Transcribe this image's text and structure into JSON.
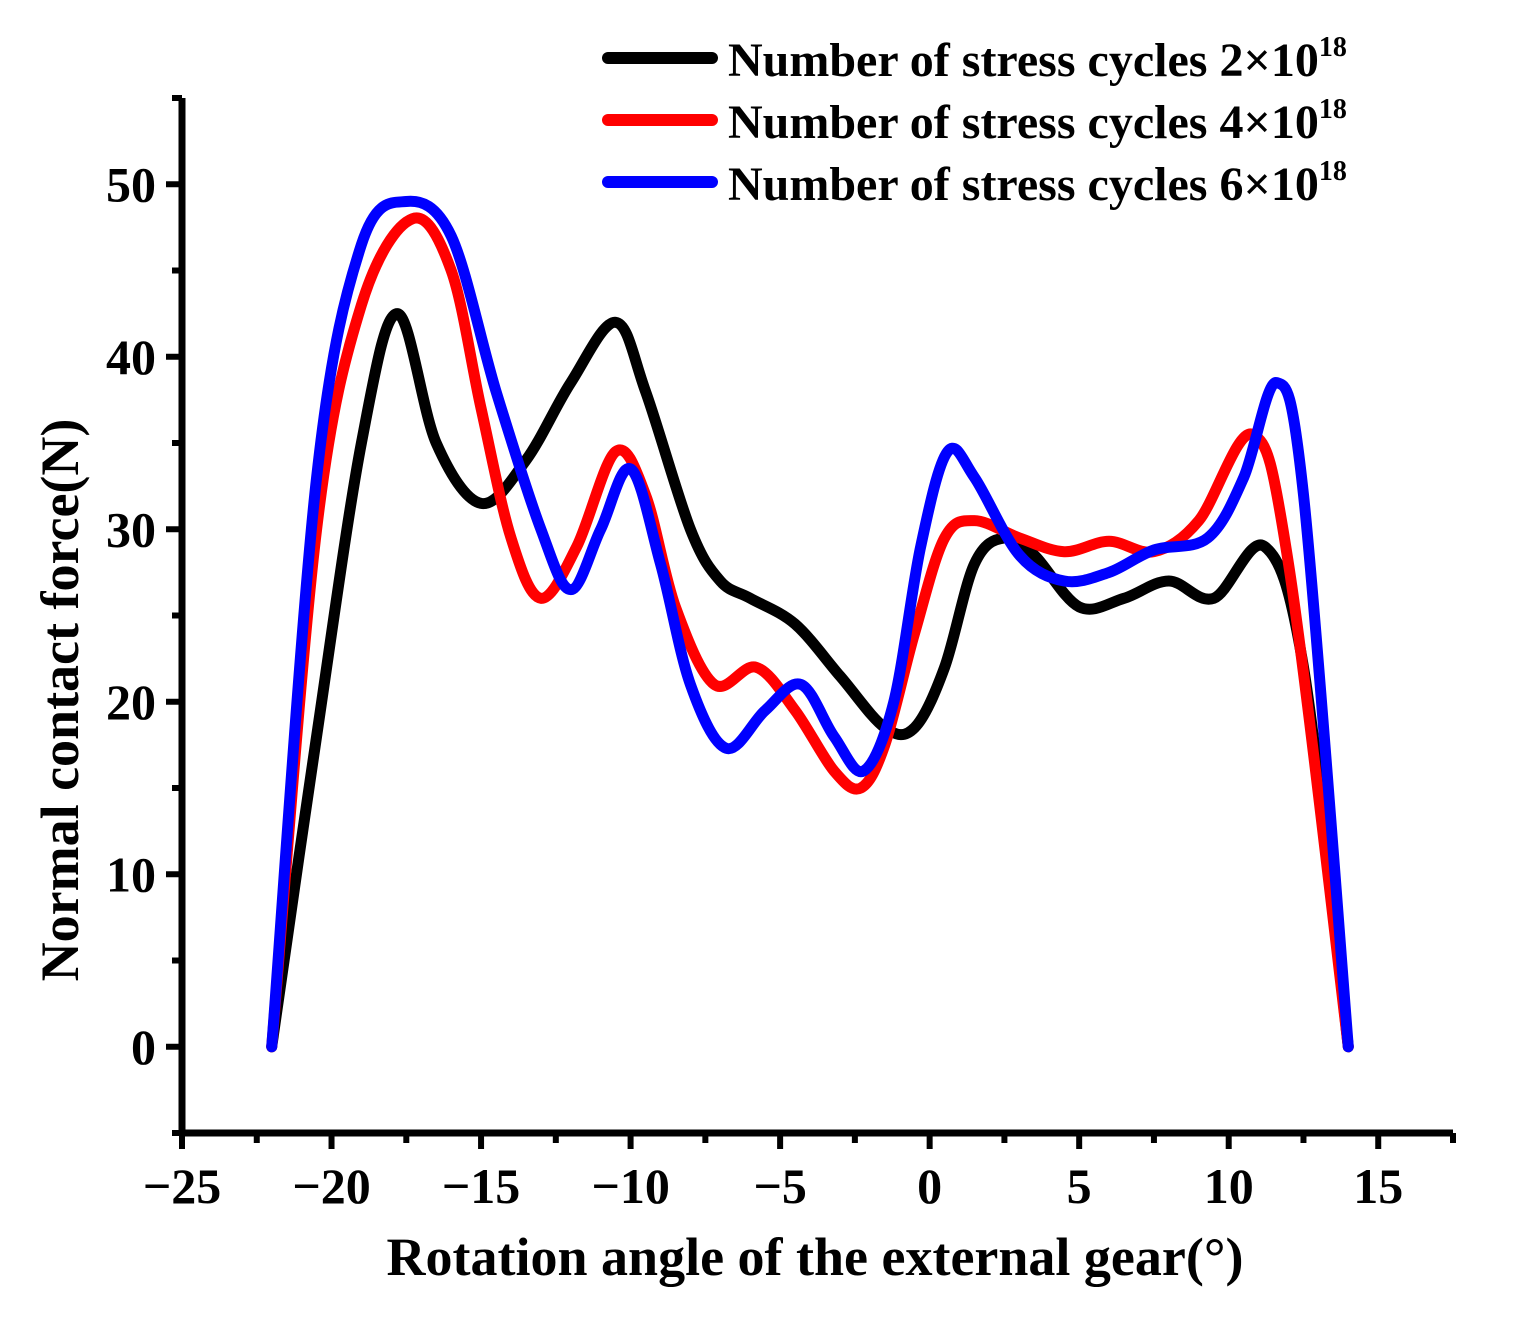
{
  "chart_data": {
    "type": "line",
    "xlabel": "Rotation angle of the external gear(°)",
    "ylabel": "Normal contact force(N)",
    "xlim": [
      -25,
      17.5
    ],
    "ylim": [
      -5,
      55
    ],
    "x_ticks": [
      -25,
      -20,
      -15,
      -10,
      -5,
      0,
      5,
      10,
      15
    ],
    "x_tick_labels": [
      "−25",
      "−20",
      "−15",
      "−10",
      "−5",
      "0",
      "5",
      "10",
      "15"
    ],
    "y_ticks": [
      0,
      10,
      20,
      30,
      40,
      50
    ],
    "y_tick_labels": [
      "0",
      "10",
      "20",
      "30",
      "40",
      "50"
    ],
    "legend_position": "top-right",
    "series": [
      {
        "name": "Number of stress cycles 2×10",
        "superscript": "18",
        "color": "#000000",
        "x": [
          -22,
          -20.5,
          -19,
          -17.8,
          -16.5,
          -15,
          -13.5,
          -12,
          -10.5,
          -9.5,
          -8,
          -7,
          -6,
          -4.5,
          -3,
          -1.5,
          -0.5,
          0.5,
          1.5,
          2.5,
          3.5,
          5,
          6.5,
          8,
          9.5,
          11.2,
          12.5,
          14
        ],
        "y": [
          0,
          18,
          35,
          42.5,
          35,
          31.5,
          34,
          38.5,
          42,
          38,
          30,
          27,
          26,
          24.5,
          21.5,
          18.5,
          18.5,
          22,
          28,
          29.5,
          28.5,
          25.5,
          26,
          27,
          26,
          29,
          22,
          0
        ]
      },
      {
        "name": "Number of stress cycles 4×10",
        "superscript": "18",
        "color": "#ff0000",
        "x": [
          -22,
          -20.5,
          -19,
          -17.3,
          -16,
          -15,
          -14,
          -13,
          -11.8,
          -10.5,
          -9.5,
          -8.5,
          -7.2,
          -5.8,
          -4.5,
          -3.2,
          -2.3,
          -1.5,
          -0.5,
          0.5,
          1.5,
          3,
          4.5,
          6,
          7.5,
          9,
          10.8,
          12,
          14
        ],
        "y": [
          0,
          30,
          43,
          48,
          45,
          37,
          29.5,
          26,
          29,
          34.5,
          32,
          25.5,
          21,
          22,
          19.5,
          16,
          15,
          17.5,
          24,
          29.5,
          30.5,
          29.5,
          28.7,
          29.3,
          28.7,
          30.5,
          35.5,
          28,
          0
        ]
      },
      {
        "name": "Number of stress cycles 6×10",
        "superscript": "18",
        "color": "#0000ff",
        "x": [
          -22,
          -20.5,
          -19,
          -17.5,
          -16,
          -14.5,
          -13,
          -12,
          -11,
          -10,
          -9,
          -8,
          -6.8,
          -5.5,
          -4.3,
          -3.2,
          -2.2,
          -1.2,
          -0.3,
          0.6,
          1.5,
          3,
          4.5,
          6,
          7.5,
          9.3,
          10.5,
          11.6,
          12.5,
          14
        ],
        "y": [
          0,
          33,
          46.5,
          49,
          47,
          38,
          30,
          26.5,
          30,
          33.5,
          28,
          21,
          17.3,
          19.5,
          21,
          18,
          16,
          20,
          29,
          34.5,
          33,
          28.5,
          27,
          27.5,
          28.8,
          29.5,
          33,
          38.5,
          32,
          0
        ]
      }
    ]
  }
}
